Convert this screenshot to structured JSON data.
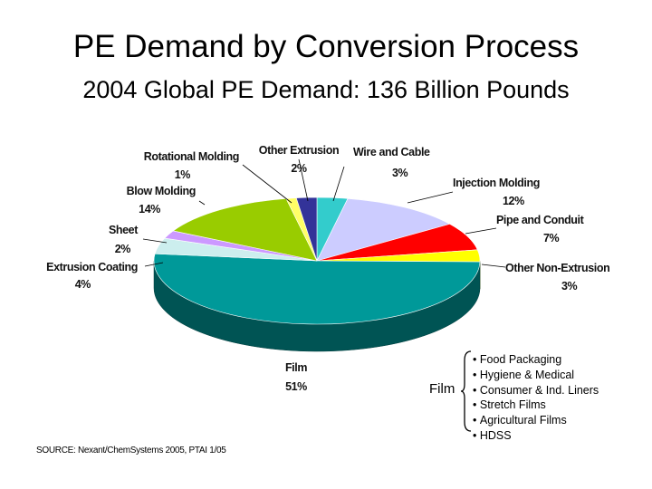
{
  "title": "PE Demand by Conversion Process",
  "subtitle": "2004 Global PE Demand: 136 Billion Pounds",
  "chart_data": {
    "type": "pie",
    "title": "PE Demand by Conversion Process",
    "subtitle": "2004 Global PE Demand: 136 Billion Pounds",
    "slices": [
      {
        "name": "Wire and Cable",
        "value": 3,
        "label": "3%",
        "color": "#33cccc"
      },
      {
        "name": "Injection Molding",
        "value": 12,
        "label": "12%",
        "color": "#ccccff"
      },
      {
        "name": "Pipe and Conduit",
        "value": 7,
        "label": "7%",
        "color": "#ff0000"
      },
      {
        "name": "Other Non-Extrusion",
        "value": 3,
        "label": "3%",
        "color": "#ffff00"
      },
      {
        "name": "Film",
        "value": 51,
        "label": "51%",
        "color": "#009999"
      },
      {
        "name": "Extrusion Coating",
        "value": 4,
        "label": "4%",
        "color": "#cceeee"
      },
      {
        "name": "Sheet",
        "value": 2,
        "label": "2%",
        "color": "#cc99ff"
      },
      {
        "name": "Blow Molding",
        "value": 14,
        "label": "14%",
        "color": "#99cc00"
      },
      {
        "name": "Rotational Molding",
        "value": 1,
        "label": "1%",
        "color": "#ffff66"
      },
      {
        "name": "Other Extrusion",
        "value": 2,
        "label": "2%",
        "color": "#333399"
      }
    ]
  },
  "film_breakdown": {
    "label": "Film",
    "items": [
      "Food Packaging",
      "Hygiene & Medical",
      "Consumer & Ind. Liners",
      "Stretch Films",
      "Agricultural Films",
      "HDSS"
    ]
  },
  "source": "SOURCE: Nexant/ChemSystems 2005, PTAI 1/05"
}
